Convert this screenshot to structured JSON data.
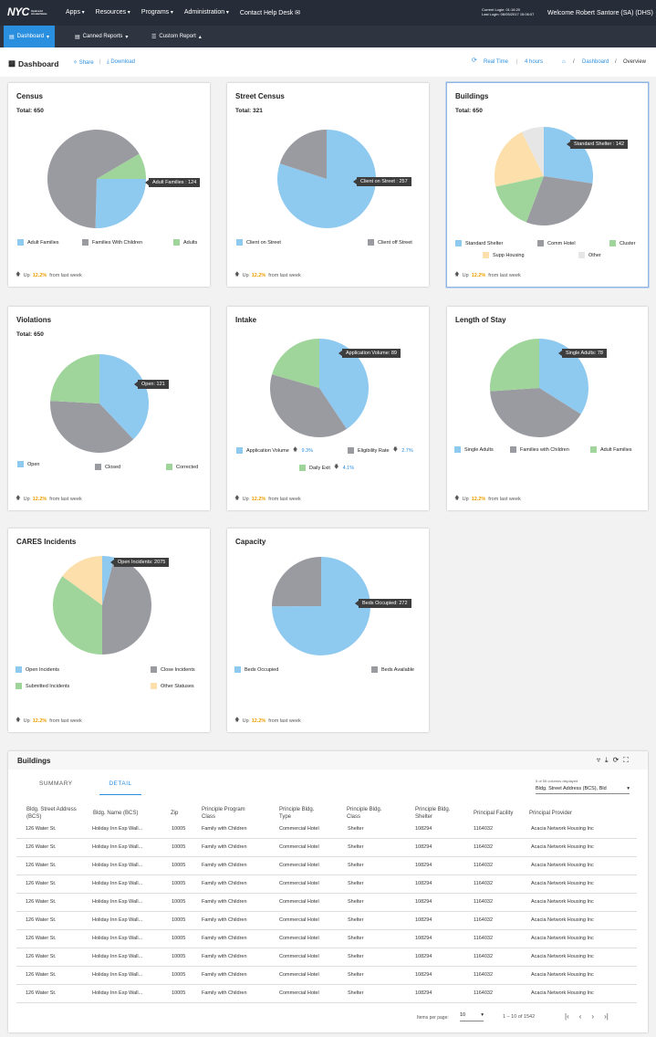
{
  "topbar": {
    "logo": "NYC",
    "logo_sub": "Department of Homeless Services",
    "nav": [
      "Apps",
      "Resources",
      "Programs",
      "Administration",
      "Contact Help Desk"
    ],
    "current_login": "Current Login: 01:16:20",
    "last_login": "Last Login: 06/05/2017 15:06:07",
    "welcome": "Welcome Robert Santore (SA) (DHS)"
  },
  "subnav": {
    "dashboard": "Dashboard",
    "canned": "Canned Reports",
    "custom": "Custom Report"
  },
  "header": {
    "title": "Dashboard",
    "share": "Share",
    "download": "Download",
    "realtime": "Real Time",
    "hours": "4 hours",
    "crumb_dashboard": "Dashboard",
    "crumb_overview": "Overview"
  },
  "footer_text": {
    "up": "Up",
    "pct": "12.2%",
    "from": "from last week"
  },
  "colors": {
    "blue": "#8ec9f0",
    "gray": "#9a9aa1",
    "green": "#9fd59a",
    "peach": "#fcdfab",
    "light": "#e6e6e6"
  },
  "cards": {
    "census": {
      "title": "Census",
      "total": "Total: 650",
      "tooltip": "Adult Families : 124",
      "legend": [
        "Adult Families",
        "Families With Children",
        "Adults"
      ]
    },
    "street": {
      "title": "Street Census",
      "total": "Total: 321",
      "tooltip": "Client on Street : 257",
      "legend": [
        "Client on Street",
        "Client off Street"
      ]
    },
    "buildings": {
      "title": "Buildings",
      "total": "Total: 650",
      "tooltip": "Standard Shelter : 142",
      "legend": [
        "Standard Shelter",
        "Comm Hotel",
        "Cluster",
        "Supp Housing",
        "Other"
      ]
    },
    "violations": {
      "title": "Violations",
      "total": "Total: 650",
      "tooltip": "Open: 121",
      "legend": [
        "Open",
        "Closed",
        "Corrected"
      ]
    },
    "intake": {
      "title": "Intake",
      "tooltip": "Application Volume: 89",
      "legend": [
        "Application Volume",
        "Eligibility Rate",
        "Daily Exit"
      ],
      "changes": [
        "9.3%",
        "2.7%",
        "4.1%"
      ]
    },
    "stay": {
      "title": "Length of Stay",
      "tooltip": "Single Adults: 78",
      "legend": [
        "Single Adults",
        "Families with Children",
        "Adult Families"
      ]
    },
    "cares": {
      "title": "CARES Incidents",
      "tooltip": "Open Incidents: 2075",
      "legend": [
        "Open Incidents",
        "Close Incidents",
        "Submitted Incidents",
        "Other Statuses"
      ]
    },
    "capacity": {
      "title": "Capacity",
      "tooltip": "Beds Occupied: 272",
      "legend": [
        "Beds Occupied",
        "Beds Available"
      ]
    }
  },
  "table": {
    "title": "Buildings",
    "tabs": [
      "SUMMARY",
      "DETAIL"
    ],
    "columns_displayed": "5 of 55 columns displayed",
    "column_select": "Bldg. Street Address (BCS), Bld",
    "headers": [
      "Bldg. Street Address (BCS)",
      "Bldg. Name (BCS)",
      "Zip",
      "Principle Program Class",
      "Principle Bldg. Type",
      "Principle Bldg. Class",
      "Principle Bldg. Shelter",
      "Principal Facility",
      "Principal Provider"
    ],
    "row": [
      "126 Water St.",
      "Holiday Inn Exp Wall...",
      "10005",
      "Family with Children",
      "Commercial Hotel",
      "Shelter",
      "108294",
      "1164032",
      "Acacia Network Housing Inc"
    ],
    "items_per_page_label": "Items per page:",
    "items_per_page": "10",
    "range": "1 – 10 of 1542"
  }
}
